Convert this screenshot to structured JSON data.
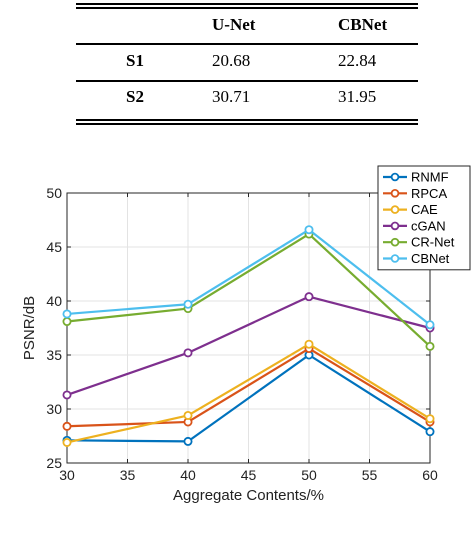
{
  "table": {
    "headers": [
      "",
      "U-Net",
      "CBNet"
    ],
    "rows": [
      {
        "label": "S1",
        "values": [
          "20.68",
          "22.84"
        ]
      },
      {
        "label": "S2",
        "values": [
          "30.71",
          "31.95"
        ]
      }
    ]
  },
  "chart_data": {
    "type": "line",
    "xlabel": "Aggregate Contents/%",
    "ylabel": "PSNR/dB",
    "xlim": [
      30,
      60
    ],
    "ylim": [
      25,
      50
    ],
    "xticks": [
      30,
      35,
      40,
      45,
      50,
      55,
      60
    ],
    "yticks": [
      25,
      30,
      35,
      40,
      45,
      50
    ],
    "grid": true,
    "legend_position": "top-right",
    "x": [
      30,
      40,
      50,
      60
    ],
    "series": [
      {
        "name": "RNMF",
        "color": "#0072BD",
        "values": [
          27.1,
          27.0,
          35.0,
          27.9
        ]
      },
      {
        "name": "RPCA",
        "color": "#D95319",
        "values": [
          28.4,
          28.8,
          35.6,
          28.8
        ]
      },
      {
        "name": "CAE",
        "color": "#EDB120",
        "values": [
          26.9,
          29.4,
          36.0,
          29.1
        ]
      },
      {
        "name": "cGAN",
        "color": "#7E2F8E",
        "values": [
          31.3,
          35.2,
          40.4,
          37.5
        ]
      },
      {
        "name": "CR-Net",
        "color": "#77AC30",
        "values": [
          38.1,
          39.3,
          46.2,
          35.8
        ]
      },
      {
        "name": "CBNet",
        "color": "#4DBEEE",
        "values": [
          38.8,
          39.7,
          46.6,
          37.8
        ]
      }
    ]
  }
}
